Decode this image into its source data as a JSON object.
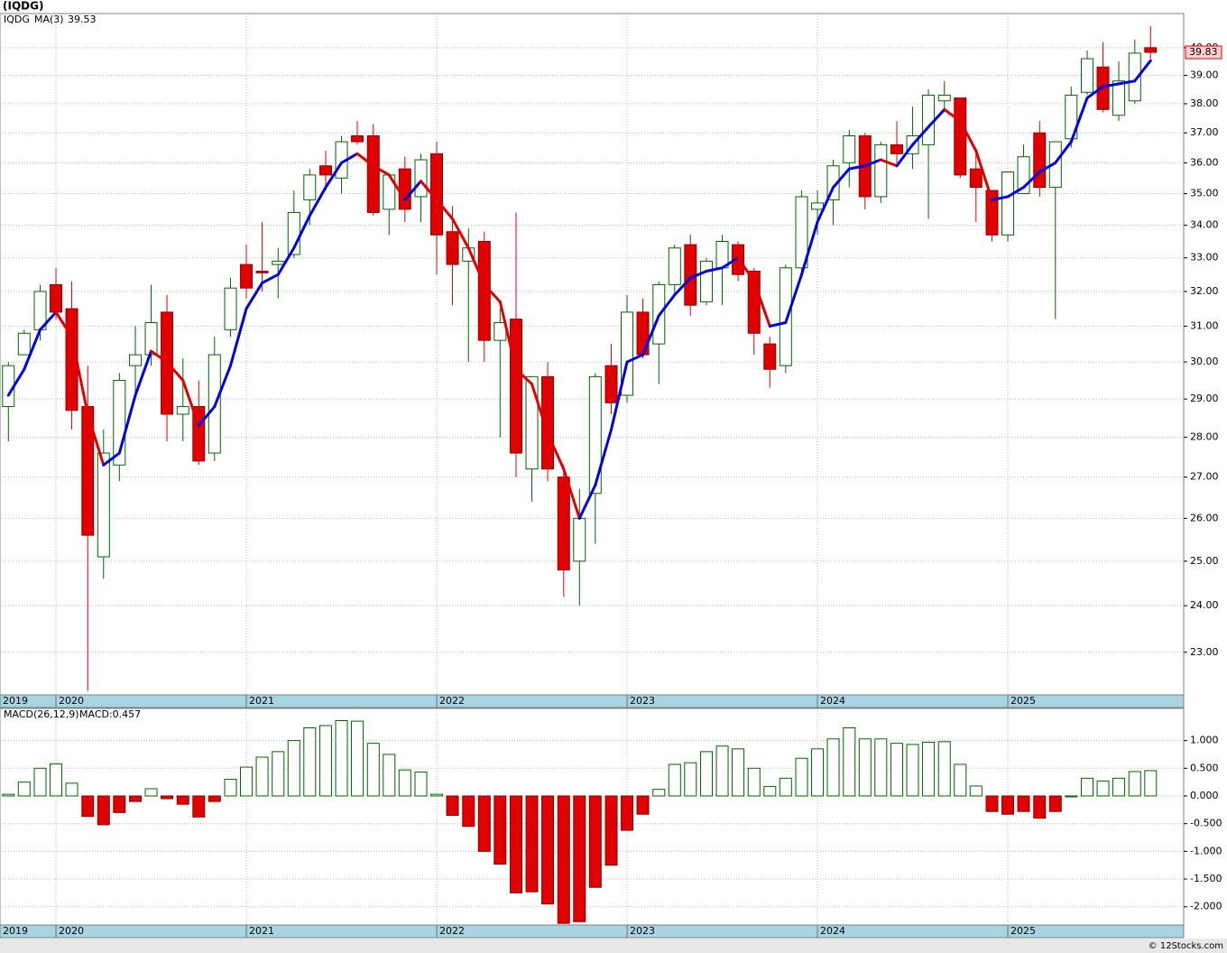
{
  "chart_data": [
    {
      "type": "candlestick",
      "title": "(IQDG)",
      "symbol": "IQDG",
      "log": true,
      "grid": true,
      "up_color": "#006400",
      "down_color": "#e00000",
      "x": [
        2019.75,
        2019.833,
        2019.917,
        2020,
        2020.083,
        2020.167,
        2020.25,
        2020.333,
        2020.417,
        2020.5,
        2020.583,
        2020.667,
        2020.75,
        2020.833,
        2020.917,
        2021,
        2021.083,
        2021.167,
        2021.25,
        2021.333,
        2021.417,
        2021.5,
        2021.583,
        2021.667,
        2021.75,
        2021.833,
        2021.917,
        2022,
        2022.083,
        2022.167,
        2022.25,
        2022.333,
        2022.417,
        2022.5,
        2022.583,
        2022.667,
        2022.75,
        2022.833,
        2022.917,
        2023,
        2023.083,
        2023.167,
        2023.25,
        2023.333,
        2023.417,
        2023.5,
        2023.583,
        2023.667,
        2023.75,
        2023.833,
        2023.917,
        2024,
        2024.083,
        2024.167,
        2024.25,
        2024.333,
        2024.417,
        2024.5,
        2024.583,
        2024.667,
        2024.75,
        2024.833,
        2024.917,
        2025,
        2025.083,
        2025.167,
        2025.25,
        2025.333,
        2025.417,
        2025.5,
        2025.583,
        2025.667,
        2025.75
      ],
      "open": [
        28.8,
        30.2,
        30.9,
        32.2,
        31.5,
        28.8,
        25.1,
        27.3,
        29.9,
        30.2,
        31.4,
        28.6,
        28.8,
        27.6,
        30.9,
        32.8,
        32.6,
        32.8,
        33.1,
        34.8,
        35.9,
        35.5,
        36.9,
        36.9,
        34.5,
        35.8,
        34.9,
        36.3,
        33.8,
        32.9,
        33.5,
        30.6,
        31.2,
        27.2,
        29.6,
        27.0,
        25.0,
        26.6,
        29.9,
        29.1,
        31.4,
        30.5,
        32.2,
        33.4,
        31.7,
        32.7,
        33.4,
        32.6,
        30.5,
        29.9,
        32.7,
        34.5,
        34.8,
        36.0,
        36.9,
        34.9,
        36.6,
        36.3,
        36.6,
        38.1,
        38.2,
        35.8,
        35.1,
        33.7,
        35.0,
        37.0,
        35.2,
        36.8,
        38.4,
        39.3,
        37.6,
        38.1,
        40.0
      ],
      "high": [
        30.0,
        30.9,
        32.2,
        32.7,
        32.3,
        29.9,
        28.2,
        29.7,
        31.0,
        32.2,
        31.9,
        30.1,
        29.5,
        30.7,
        32.4,
        33.4,
        34.1,
        33.3,
        35.1,
        35.8,
        36.4,
        36.9,
        37.4,
        37.3,
        35.6,
        36.2,
        36.3,
        36.7,
        34.6,
        33.9,
        33.8,
        31.5,
        34.4,
        29.6,
        30.0,
        27.3,
        26.7,
        29.7,
        30.5,
        31.9,
        31.8,
        32.3,
        33.4,
        33.7,
        33.0,
        33.7,
        33.5,
        32.7,
        30.7,
        32.8,
        35.1,
        35.1,
        36.1,
        37.1,
        37.0,
        36.7,
        37.4,
        37.9,
        38.5,
        38.8,
        38.2,
        36.3,
        35.1,
        35.7,
        36.6,
        37.4,
        36.7,
        38.6,
        39.9,
        40.2,
        39.5,
        40.3,
        40.8
      ],
      "low": [
        27.9,
        30.2,
        30.6,
        31.2,
        28.2,
        22.2,
        24.6,
        26.9,
        29.0,
        29.9,
        27.9,
        27.9,
        27.3,
        27.4,
        30.7,
        31.8,
        32.0,
        31.8,
        33.0,
        34.0,
        35.1,
        35.0,
        36.6,
        34.3,
        33.7,
        34.1,
        34.1,
        32.5,
        31.6,
        30.0,
        30.0,
        28.0,
        27.0,
        26.4,
        26.9,
        24.2,
        24.0,
        25.4,
        28.6,
        28.9,
        30.1,
        29.4,
        31.9,
        31.3,
        31.6,
        31.6,
        32.3,
        30.2,
        29.3,
        29.7,
        32.5,
        33.7,
        34.0,
        35.2,
        34.5,
        34.7,
        36.0,
        35.8,
        34.2,
        37.7,
        35.5,
        34.1,
        33.5,
        33.5,
        35.0,
        34.9,
        31.2,
        36.5,
        38.3,
        37.7,
        37.4,
        38.0,
        39.6
      ],
      "close": [
        29.9,
        30.8,
        32.0,
        31.4,
        28.7,
        25.6,
        27.6,
        29.5,
        30.2,
        31.1,
        28.6,
        28.8,
        27.4,
        30.2,
        32.1,
        32.1,
        32.55,
        32.9,
        34.4,
        35.6,
        35.6,
        36.7,
        36.7,
        34.4,
        35.6,
        34.5,
        36.1,
        33.7,
        32.8,
        33.3,
        30.6,
        31.1,
        27.6,
        29.6,
        27.2,
        24.8,
        26.0,
        29.6,
        28.9,
        31.4,
        30.2,
        32.2,
        33.3,
        31.6,
        32.9,
        33.5,
        32.5,
        30.8,
        29.8,
        32.7,
        34.9,
        34.7,
        35.9,
        36.9,
        34.9,
        36.6,
        36.3,
        36.9,
        38.3,
        38.3,
        35.6,
        35.2,
        33.7,
        35.7,
        36.2,
        35.2,
        36.7,
        38.3,
        39.6,
        37.8,
        38.8,
        39.8,
        39.83
      ],
      "series": [
        {
          "name": "MA(3)",
          "color": "#0000e0",
          "down_color": "#e00000",
          "values": [
            29.1,
            29.8,
            30.9,
            31.4,
            30.7,
            28.6,
            27.3,
            27.6,
            29.1,
            30.3,
            30.0,
            29.5,
            28.3,
            28.8,
            29.9,
            31.5,
            32.25,
            32.5,
            33.3,
            34.3,
            35.2,
            36.0,
            36.3,
            35.9,
            35.6,
            34.8,
            35.4,
            34.8,
            34.2,
            33.3,
            32.2,
            31.7,
            29.8,
            29.4,
            28.1,
            27.2,
            26.0,
            26.8,
            28.2,
            30.0,
            30.2,
            31.3,
            31.9,
            32.4,
            32.6,
            32.7,
            33.0,
            32.3,
            31.0,
            31.1,
            32.5,
            34.1,
            35.2,
            35.8,
            35.9,
            36.1,
            35.9,
            36.6,
            37.2,
            37.8,
            37.4,
            36.4,
            34.8,
            34.9,
            35.2,
            35.7,
            36.0,
            36.7,
            38.2,
            38.6,
            38.7,
            38.8,
            39.53
          ]
        }
      ],
      "xlim": [
        2019.706,
        2025.924
      ],
      "xticks": [
        2019,
        2020,
        2021,
        2022,
        2023,
        2024,
        2025
      ],
      "ylim": [
        22.12,
        41.27
      ],
      "yticks": [
        {
          "value": 23,
          "label": "23.00"
        },
        {
          "value": 24,
          "label": "24.00"
        },
        {
          "value": 25,
          "label": "25.00"
        },
        {
          "value": 26,
          "label": "26.00"
        },
        {
          "value": 27,
          "label": "27.00"
        },
        {
          "value": 28,
          "label": "28.00"
        },
        {
          "value": 29,
          "label": "29.00"
        },
        {
          "value": 30,
          "label": "30.00"
        },
        {
          "value": 31,
          "label": "31.00"
        },
        {
          "value": 32,
          "label": "32.00"
        },
        {
          "value": 33,
          "label": "33.00"
        },
        {
          "value": 34,
          "label": "34.00"
        },
        {
          "value": 35,
          "label": "35.00"
        },
        {
          "value": 36,
          "label": "36.00"
        },
        {
          "value": 37,
          "label": "37.00"
        },
        {
          "value": 38,
          "label": "38.00"
        },
        {
          "value": 39,
          "label": "39.00"
        },
        {
          "value": 40,
          "label": "40.00"
        }
      ]
    },
    {
      "type": "bar",
      "title": "MACD(26,12,9)",
      "value_label": "MACD:0.457",
      "grid": true,
      "up_color": "#006400",
      "down_color": "#e00000",
      "x": [
        2019.75,
        2019.833,
        2019.917,
        2020,
        2020.083,
        2020.167,
        2020.25,
        2020.333,
        2020.417,
        2020.5,
        2020.583,
        2020.667,
        2020.75,
        2020.833,
        2020.917,
        2021,
        2021.083,
        2021.167,
        2021.25,
        2021.333,
        2021.417,
        2021.5,
        2021.583,
        2021.667,
        2021.75,
        2021.833,
        2021.917,
        2022,
        2022.083,
        2022.167,
        2022.25,
        2022.333,
        2022.417,
        2022.5,
        2022.583,
        2022.667,
        2022.75,
        2022.833,
        2022.917,
        2023,
        2023.083,
        2023.167,
        2023.25,
        2023.333,
        2023.417,
        2023.5,
        2023.583,
        2023.667,
        2023.75,
        2023.833,
        2023.917,
        2024,
        2024.083,
        2024.167,
        2024.25,
        2024.333,
        2024.417,
        2024.5,
        2024.583,
        2024.667,
        2024.75,
        2024.833,
        2024.917,
        2025,
        2025.083,
        2025.167,
        2025.25,
        2025.333,
        2025.417,
        2025.5,
        2025.583,
        2025.667,
        2025.75
      ],
      "values": [
        0.03,
        0.25,
        0.5,
        0.58,
        0.23,
        -0.37,
        -0.52,
        -0.3,
        -0.1,
        0.13,
        -0.05,
        -0.15,
        -0.38,
        -0.1,
        0.3,
        0.52,
        0.7,
        0.8,
        1.0,
        1.23,
        1.27,
        1.36,
        1.35,
        0.95,
        0.75,
        0.47,
        0.43,
        0.03,
        -0.35,
        -0.55,
        -1.0,
        -1.23,
        -1.75,
        -1.73,
        -1.95,
        -2.3,
        -2.27,
        -1.65,
        -1.25,
        -0.62,
        -0.33,
        0.12,
        0.57,
        0.6,
        0.8,
        0.9,
        0.85,
        0.5,
        0.17,
        0.32,
        0.68,
        0.85,
        1.03,
        1.23,
        1.03,
        1.03,
        0.95,
        0.93,
        0.97,
        0.98,
        0.57,
        0.18,
        -0.28,
        -0.33,
        -0.28,
        -0.4,
        -0.28,
        0.0,
        0.32,
        0.27,
        0.32,
        0.44,
        0.457
      ],
      "xlim": [
        2019.706,
        2025.924
      ],
      "xticks": [
        2019,
        2020,
        2021,
        2022,
        2023,
        2024,
        2025
      ],
      "ylim": [
        -2.33,
        1.58
      ],
      "yticks": [
        {
          "value": 1,
          "label": "1.000"
        },
        {
          "value": 0.5,
          "label": "0.500"
        },
        {
          "value": 0,
          "label": "0.000"
        },
        {
          "value": -0.5,
          "label": "-0.500"
        },
        {
          "value": -1,
          "label": "-1.000"
        },
        {
          "value": -1.5,
          "label": "-1.500"
        },
        {
          "value": -2,
          "label": "-2.000"
        }
      ]
    }
  ],
  "footer": "© 12Stocks.com"
}
